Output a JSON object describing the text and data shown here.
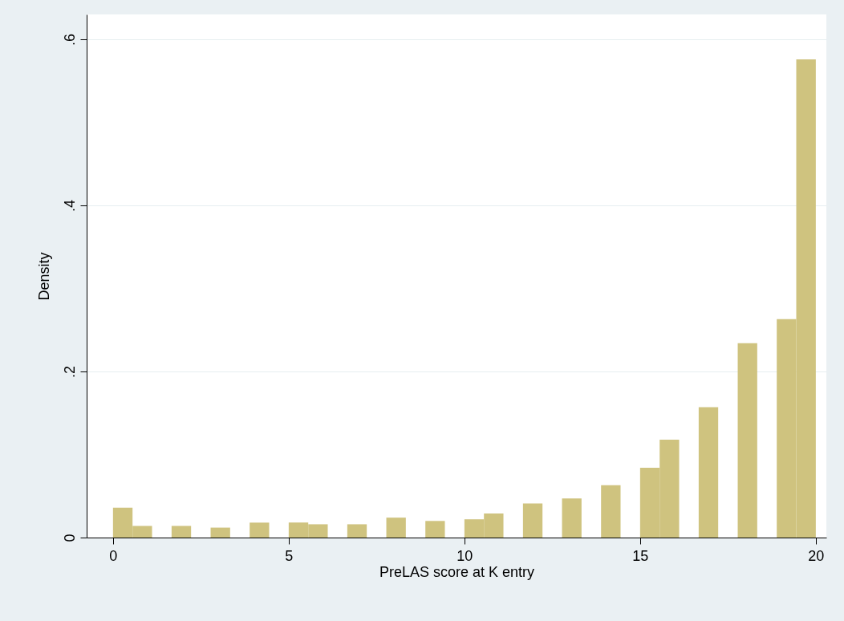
{
  "chart_data": {
    "type": "histogram",
    "xlabel": "PreLAS score at K entry",
    "ylabel": "Density",
    "bins": [
      0,
      0.556,
      1.111,
      1.667,
      2.222,
      2.778,
      3.333,
      3.889,
      4.444,
      5,
      5.556,
      6.111,
      6.667,
      7.222,
      7.778,
      8.333,
      8.889,
      9.444,
      10,
      10.556,
      11.111,
      11.667,
      12.222,
      12.778,
      13.333,
      13.889,
      14.444,
      15,
      15.556,
      16.111,
      16.667,
      17.222,
      17.778,
      18.333,
      18.889,
      19.444,
      20
    ],
    "values": [
      0.036,
      0.014,
      0,
      0.014,
      0,
      0.012,
      0,
      0.018,
      0,
      0.018,
      0.016,
      0,
      0.016,
      0,
      0.024,
      0,
      0.02,
      0,
      0.022,
      0.029,
      0,
      0.041,
      0,
      0.047,
      0,
      0.063,
      0,
      0.084,
      0.118,
      0,
      0.157,
      0,
      0.234,
      0,
      0.263,
      0.576
    ],
    "color": "#cfc37f",
    "xlim": [
      -0.75,
      20.3
    ],
    "xticks": [
      0,
      5,
      10,
      15,
      20
    ],
    "ylim": [
      0,
      0.63
    ],
    "yticks": [
      0,
      {
        "value": 0.2,
        "label": ".2"
      },
      {
        "value": 0.4,
        "label": ".4"
      },
      {
        "value": 0.6,
        "label": ".6"
      }
    ],
    "grid": "y"
  }
}
